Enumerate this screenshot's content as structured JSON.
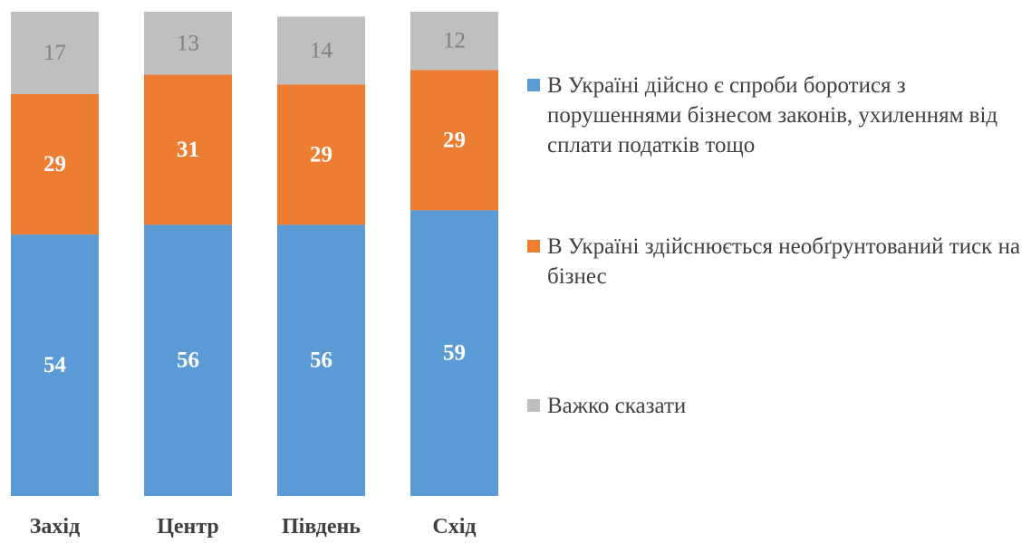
{
  "chart_data": {
    "type": "bar",
    "stacked": true,
    "orientation": "vertical",
    "categories": [
      "Захід",
      "Центр",
      "Південь",
      "Схід"
    ],
    "series": [
      {
        "name": "В Україні дійсно є спроби боротися з порушеннями бізнесом законів, ухиленням від сплати податків тощо",
        "values": [
          54,
          56,
          56,
          59
        ],
        "color": "#5B9BD5",
        "label_color": "#FFFFFF"
      },
      {
        "name": "В Україні здійснюється необґрунтований тиск на бізнес",
        "values": [
          29,
          31,
          29,
          29
        ],
        "color": "#ED7D31",
        "label_color": "#FFFFFF"
      },
      {
        "name": "Важко сказати",
        "values": [
          17,
          13,
          14,
          12
        ],
        "color": "#BFBFBF",
        "label_color": "#7F7F7F"
      }
    ],
    "ylim": [
      0,
      100
    ],
    "grid": false,
    "legend_position": "right"
  }
}
